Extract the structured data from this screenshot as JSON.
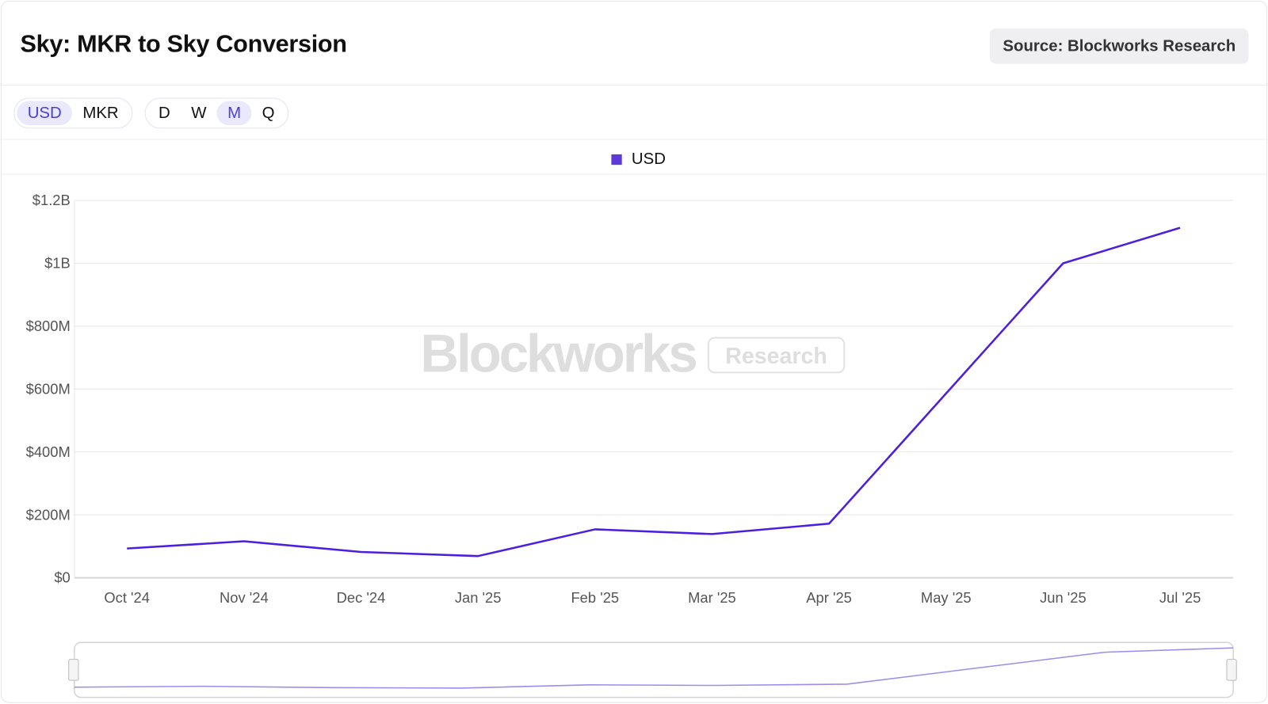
{
  "header": {
    "title": "Sky: MKR to Sky Conversion",
    "source": "Source: Blockworks Research"
  },
  "toggles": {
    "unit": [
      {
        "label": "USD",
        "active": true
      },
      {
        "label": "MKR",
        "active": false
      }
    ],
    "period": [
      {
        "label": "D",
        "active": false
      },
      {
        "label": "W",
        "active": false
      },
      {
        "label": "M",
        "active": true
      },
      {
        "label": "Q",
        "active": false
      }
    ]
  },
  "watermark": {
    "brand": "Blockworks",
    "tag": "Research"
  },
  "colors": {
    "series": "#4c1fe0",
    "accent": "#4b3fd6",
    "navigator": "#9d8cf0"
  },
  "chart_data": {
    "type": "line",
    "title": "Sky: MKR to Sky Conversion",
    "categories": [
      "Oct '24",
      "Nov '24",
      "Dec '24",
      "Jan '25",
      "Feb '25",
      "Mar '25",
      "Apr '25",
      "May '25",
      "Jun '25",
      "Jul '25"
    ],
    "series": [
      {
        "name": "USD",
        "values": [
          93000000,
          116000000,
          82000000,
          69000000,
          154000000,
          139000000,
          172000000,
          586000000,
          1000000000,
          1113000000
        ]
      }
    ],
    "ylim": [
      0,
      1200000000
    ],
    "yticks": [
      0,
      200000000,
      400000000,
      600000000,
      800000000,
      1000000000,
      1200000000
    ],
    "ytick_labels": [
      "$0",
      "$200M",
      "$400M",
      "$600M",
      "$800M",
      "$1B",
      "$1.2B"
    ],
    "grid": true,
    "legend": "top-center",
    "navigator": true
  }
}
